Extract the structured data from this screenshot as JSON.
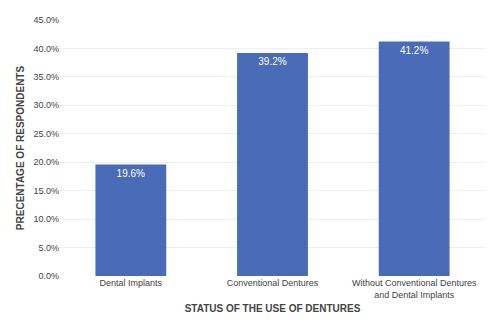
{
  "chart_data": {
    "type": "bar",
    "categories": [
      "Dental Implants",
      "Conventional Dentures",
      "Without Conventional Dentures\nand Dental Implants"
    ],
    "values": [
      19.6,
      39.2,
      41.2
    ],
    "value_labels": [
      "19.6%",
      "39.2%",
      "41.2%"
    ],
    "data_labels": true,
    "color": "#4a6cb8",
    "xlabel": "STATUS OF THE USE OF DENTURES",
    "ylabel": "PRECENTAGE OF RESPONDENTS",
    "ylim": [
      0,
      45
    ],
    "yticks": [
      {
        "value": 0,
        "label": "0.0%"
      },
      {
        "value": 5,
        "label": "5.0%"
      },
      {
        "value": 10,
        "label": "10.0%"
      },
      {
        "value": 15,
        "label": "15.0%"
      },
      {
        "value": 20,
        "label": "20.0%"
      },
      {
        "value": 25,
        "label": "25.0%"
      },
      {
        "value": 30,
        "label": "30.0%"
      },
      {
        "value": 35,
        "label": "35.0%"
      },
      {
        "value": 40,
        "label": "40.0%"
      },
      {
        "value": 45,
        "label": "45.0%"
      }
    ],
    "grid": true
  }
}
